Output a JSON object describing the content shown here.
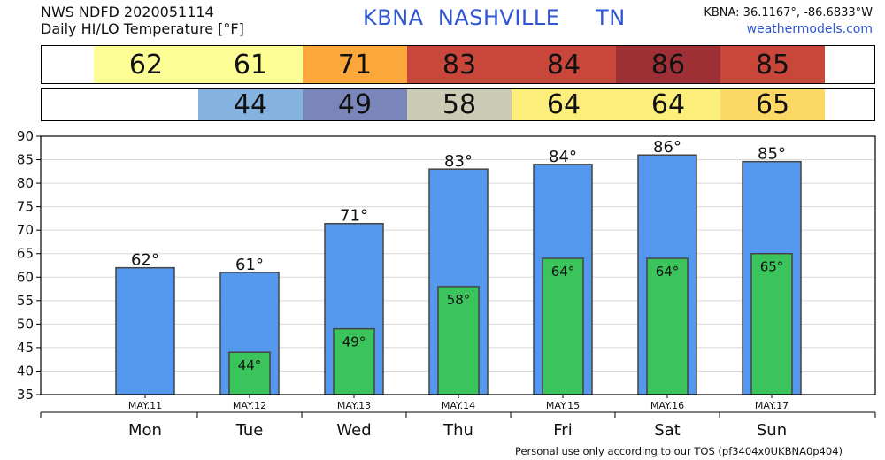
{
  "header": {
    "line1": "NWS NDFD 2020051114",
    "line2": "Daily HI/LO Temperature [°F]",
    "title": "KBNA  NASHVILLE     TN",
    "coords": "KBNA: 36.1167°, -86.6833°W",
    "site": "weathermodels.com"
  },
  "footer": "Personal use only according to our TOS (pf3404x0UKBNA0p404)",
  "high_row": [
    {
      "value": "62",
      "color": "#fdfd96"
    },
    {
      "value": "61",
      "color": "#fdfd96"
    },
    {
      "value": "71",
      "color": "#fca739"
    },
    {
      "value": "83",
      "color": "#c8463a"
    },
    {
      "value": "84",
      "color": "#c8463a"
    },
    {
      "value": "86",
      "color": "#9e2f35"
    },
    {
      "value": "85",
      "color": "#c8463a"
    }
  ],
  "low_row": [
    {
      "value": "",
      "color": "#ffffff"
    },
    {
      "value": "44",
      "color": "#84b3e0"
    },
    {
      "value": "49",
      "color": "#7a86b9"
    },
    {
      "value": "58",
      "color": "#cbcab5"
    },
    {
      "value": "64",
      "color": "#fbee7a"
    },
    {
      "value": "64",
      "color": "#fbee7a"
    },
    {
      "value": "65",
      "color": "#fcd864"
    }
  ],
  "chart_data": {
    "type": "bar",
    "categories": [
      "Mon",
      "Tue",
      "Wed",
      "Thu",
      "Fri",
      "Sat",
      "Sun"
    ],
    "dates": [
      "MAY.11",
      "MAY.12",
      "MAY.13",
      "MAY.14",
      "MAY.15",
      "MAY.16",
      "MAY.17"
    ],
    "series": [
      {
        "values": [
          62,
          61,
          71.4,
          83,
          84,
          86,
          84.6
        ],
        "labels": [
          "62°",
          "61°",
          "71°",
          "83°",
          "84°",
          "86°",
          "85°"
        ],
        "color": "#5599ee"
      },
      {
        "values": [
          null,
          44,
          49,
          58,
          64,
          64,
          65
        ],
        "labels": [
          "",
          "44°",
          "49°",
          "58°",
          "64°",
          "64°",
          "65°"
        ],
        "color": "#3cc45c"
      }
    ],
    "ylim": [
      35,
      90
    ],
    "yticks": [
      35,
      40,
      45,
      50,
      55,
      60,
      65,
      70,
      75,
      80,
      85,
      90
    ],
    "grid": true
  }
}
